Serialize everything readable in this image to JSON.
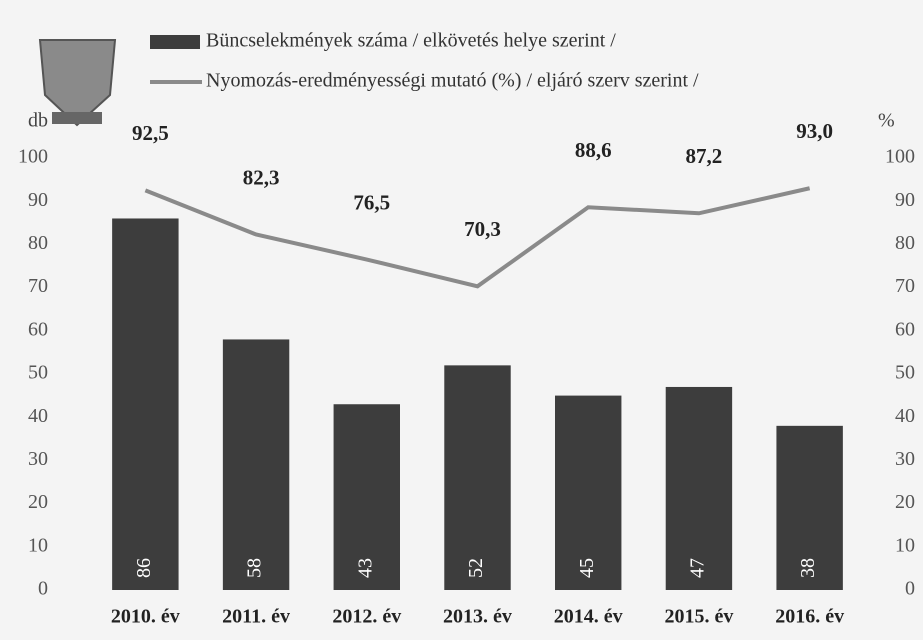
{
  "chart_data": {
    "type": "bar",
    "categories": [
      "2010. év",
      "2011. év",
      "2012. év",
      "2013. év",
      "2014. év",
      "2015. év",
      "2016. év"
    ],
    "series": [
      {
        "name": "Büncselekmények száma / elkövetés helye szerint /",
        "type": "bar",
        "color": "#3d3d3d",
        "values": [
          86,
          58,
          43,
          52,
          45,
          47,
          38
        ]
      },
      {
        "name": "Nyomozás-eredményességi mutató (%) / eljáró szerv szerint /",
        "type": "line",
        "axis": "y2",
        "color": "#8a8a8a",
        "values": [
          92.5,
          82.3,
          76.5,
          70.3,
          88.6,
          87.2,
          93.0
        ],
        "value_labels": [
          "92,5",
          "82,3",
          "76,5",
          "70,3",
          "88,6",
          "87,2",
          "93,0"
        ]
      }
    ],
    "ylabel": "db",
    "y2label": "%",
    "ylim": [
      0,
      100
    ],
    "yticks": [
      0,
      10,
      20,
      30,
      40,
      50,
      60,
      70,
      80,
      90,
      100
    ],
    "y2lim": [
      0,
      100
    ],
    "y2ticks": [
      0,
      10,
      20,
      30,
      40,
      50,
      60,
      70,
      80,
      90,
      100
    ]
  }
}
